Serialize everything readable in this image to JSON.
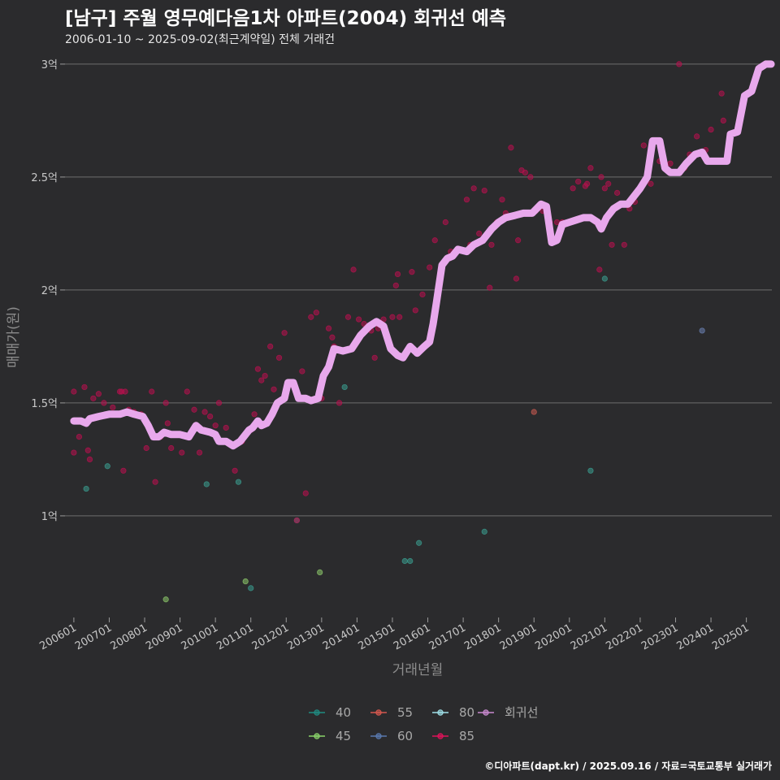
{
  "colors": {
    "background": "#2b2b2d",
    "grid": "#6e6e6e",
    "trend": "#e8a8ec"
  },
  "chart_data": {
    "type": "scatter",
    "title": "[남구] 주월 영무예다음1차 아파트(2004) 회귀선 예측",
    "subtitle": "2006-01-10 ~ 2025-09-02(최근계약일) 전체 거래건",
    "xlabel": "거래년월",
    "ylabel": "매매가(원)",
    "caption": "©디아파트(dapt.kr) / 2025.09.16 / 자료=국토교통부 실거래가",
    "grid": "horizontal",
    "legend_position": "bottom",
    "x_range": [
      "2005-10",
      "2025-12"
    ],
    "ylim": [
      0.55,
      3.05
    ],
    "y_unit": "억",
    "y_ticks": [
      {
        "value": 1.0,
        "label": "1억"
      },
      {
        "value": 1.5,
        "label": "1.5억"
      },
      {
        "value": 2.0,
        "label": "2억"
      },
      {
        "value": 2.5,
        "label": "2.5억"
      },
      {
        "value": 3.0,
        "label": "3억"
      }
    ],
    "x_ticks": [
      {
        "value": 2006.0,
        "label": "200601"
      },
      {
        "value": 2007.0,
        "label": "200701"
      },
      {
        "value": 2008.0,
        "label": "200801"
      },
      {
        "value": 2009.0,
        "label": "200901"
      },
      {
        "value": 2010.0,
        "label": "201001"
      },
      {
        "value": 2011.0,
        "label": "201101"
      },
      {
        "value": 2012.0,
        "label": "201201"
      },
      {
        "value": 2013.0,
        "label": "201301"
      },
      {
        "value": 2014.0,
        "label": "201401"
      },
      {
        "value": 2015.0,
        "label": "201501"
      },
      {
        "value": 2016.0,
        "label": "201601"
      },
      {
        "value": 2017.0,
        "label": "201701"
      },
      {
        "value": 2018.0,
        "label": "201801"
      },
      {
        "value": 2019.0,
        "label": "201901"
      },
      {
        "value": 2020.0,
        "label": "202001"
      },
      {
        "value": 2021.0,
        "label": "202101"
      },
      {
        "value": 2022.0,
        "label": "202201"
      },
      {
        "value": 2023.0,
        "label": "202301"
      },
      {
        "value": 2024.0,
        "label": "202401"
      },
      {
        "value": 2025.0,
        "label": "202501"
      }
    ],
    "legend": [
      {
        "name": "40",
        "color": "#1f8c82",
        "kind": "point"
      },
      {
        "name": "45",
        "color": "#8ad46a",
        "kind": "point"
      },
      {
        "name": "55",
        "color": "#d6584e",
        "kind": "point"
      },
      {
        "name": "60",
        "color": "#5a7ab0",
        "kind": "point"
      },
      {
        "name": "80",
        "color": "#9fe0e8",
        "kind": "point"
      },
      {
        "name": "85",
        "color": "#e0125a",
        "kind": "point"
      },
      {
        "name": "회귀선",
        "color": "#c98ad0",
        "kind": "line"
      }
    ],
    "series": [
      {
        "name": "40",
        "color": "#3a9c8e",
        "points": [
          [
            2006.35,
            1.12
          ],
          [
            2006.95,
            1.22
          ],
          [
            2009.75,
            1.14
          ],
          [
            2010.65,
            1.15
          ],
          [
            2012.3,
            0.98
          ],
          [
            2013.65,
            1.57
          ],
          [
            2015.35,
            0.8
          ],
          [
            2015.5,
            0.8
          ],
          [
            2015.75,
            0.88
          ],
          [
            2017.6,
            0.93
          ],
          [
            2020.6,
            1.2
          ],
          [
            2021.0,
            2.05
          ],
          [
            2011.0,
            0.68
          ]
        ]
      },
      {
        "name": "45",
        "color": "#8cc86a",
        "points": [
          [
            2008.6,
            0.63
          ],
          [
            2010.85,
            0.71
          ],
          [
            2012.95,
            0.75
          ]
        ]
      },
      {
        "name": "55",
        "color": "#c85a50",
        "points": [
          [
            2019.0,
            1.46
          ]
        ]
      },
      {
        "name": "60",
        "color": "#6a80b0",
        "points": [
          [
            2023.75,
            1.82
          ]
        ]
      },
      {
        "name": "85",
        "color": "#b8104e",
        "points": [
          [
            2006.0,
            1.55
          ],
          [
            2006.0,
            1.28
          ],
          [
            2006.15,
            1.35
          ],
          [
            2006.3,
            1.57
          ],
          [
            2006.4,
            1.29
          ],
          [
            2006.45,
            1.25
          ],
          [
            2006.55,
            1.52
          ],
          [
            2006.7,
            1.54
          ],
          [
            2006.85,
            1.5
          ],
          [
            2007.1,
            1.48
          ],
          [
            2007.3,
            1.55
          ],
          [
            2007.35,
            1.55
          ],
          [
            2007.4,
            1.2
          ],
          [
            2007.45,
            1.55
          ],
          [
            2007.55,
            1.47
          ],
          [
            2007.7,
            1.46
          ],
          [
            2007.9,
            1.45
          ],
          [
            2008.05,
            1.3
          ],
          [
            2008.2,
            1.55
          ],
          [
            2008.3,
            1.15
          ],
          [
            2008.45,
            1.35
          ],
          [
            2008.6,
            1.5
          ],
          [
            2008.65,
            1.41
          ],
          [
            2008.75,
            1.3
          ],
          [
            2009.05,
            1.28
          ],
          [
            2009.2,
            1.55
          ],
          [
            2009.4,
            1.47
          ],
          [
            2009.55,
            1.28
          ],
          [
            2009.7,
            1.46
          ],
          [
            2009.85,
            1.44
          ],
          [
            2010.0,
            1.4
          ],
          [
            2010.1,
            1.5
          ],
          [
            2010.3,
            1.39
          ],
          [
            2010.55,
            1.2
          ],
          [
            2010.75,
            1.33
          ],
          [
            2011.0,
            1.38
          ],
          [
            2011.1,
            1.45
          ],
          [
            2011.2,
            1.65
          ],
          [
            2011.3,
            1.6
          ],
          [
            2011.4,
            1.62
          ],
          [
            2011.55,
            1.75
          ],
          [
            2011.65,
            1.56
          ],
          [
            2011.8,
            1.7
          ],
          [
            2011.95,
            1.81
          ],
          [
            2012.15,
            1.58
          ],
          [
            2012.3,
            0.98
          ],
          [
            2012.45,
            1.64
          ],
          [
            2012.55,
            1.1
          ],
          [
            2012.7,
            1.88
          ],
          [
            2012.85,
            1.9
          ],
          [
            2013.0,
            1.52
          ],
          [
            2013.2,
            1.83
          ],
          [
            2013.3,
            1.79
          ],
          [
            2013.35,
            1.75
          ],
          [
            2013.5,
            1.5
          ],
          [
            2013.6,
            1.73
          ],
          [
            2013.75,
            1.88
          ],
          [
            2013.9,
            2.09
          ],
          [
            2014.05,
            1.87
          ],
          [
            2014.2,
            1.85
          ],
          [
            2014.4,
            1.82
          ],
          [
            2014.5,
            1.7
          ],
          [
            2014.6,
            1.83
          ],
          [
            2014.75,
            1.87
          ],
          [
            2015.0,
            1.88
          ],
          [
            2015.1,
            2.02
          ],
          [
            2015.15,
            2.07
          ],
          [
            2015.2,
            1.88
          ],
          [
            2015.65,
            1.91
          ],
          [
            2015.85,
            1.98
          ],
          [
            2016.05,
            2.1
          ],
          [
            2016.2,
            2.22
          ],
          [
            2016.5,
            2.3
          ],
          [
            2016.65,
            2.17
          ],
          [
            2016.9,
            2.18
          ],
          [
            2017.1,
            2.4
          ],
          [
            2017.2,
            2.2
          ],
          [
            2017.3,
            2.45
          ],
          [
            2017.45,
            2.25
          ],
          [
            2017.6,
            2.44
          ],
          [
            2017.8,
            2.2
          ],
          [
            2017.95,
            2.3
          ],
          [
            2018.1,
            2.4
          ],
          [
            2018.2,
            2.34
          ],
          [
            2018.35,
            2.63
          ],
          [
            2018.55,
            2.22
          ],
          [
            2018.65,
            2.53
          ],
          [
            2018.75,
            2.52
          ],
          [
            2018.9,
            2.5
          ],
          [
            2019.05,
            2.35
          ],
          [
            2019.25,
            2.35
          ],
          [
            2019.45,
            2.3
          ],
          [
            2019.65,
            2.3
          ],
          [
            2019.8,
            2.3
          ],
          [
            2020.1,
            2.45
          ],
          [
            2020.25,
            2.48
          ],
          [
            2020.45,
            2.46
          ],
          [
            2020.5,
            2.47
          ],
          [
            2020.6,
            2.54
          ],
          [
            2020.75,
            2.3
          ],
          [
            2020.9,
            2.5
          ],
          [
            2021.0,
            2.45
          ],
          [
            2021.1,
            2.47
          ],
          [
            2021.2,
            2.2
          ],
          [
            2021.35,
            2.43
          ],
          [
            2021.55,
            2.2
          ],
          [
            2021.7,
            2.36
          ],
          [
            2021.85,
            2.39
          ],
          [
            2022.1,
            2.64
          ],
          [
            2022.3,
            2.47
          ],
          [
            2022.55,
            2.57
          ],
          [
            2022.7,
            2.55
          ],
          [
            2022.85,
            2.56
          ],
          [
            2023.1,
            3.0
          ],
          [
            2023.25,
            2.54
          ],
          [
            2023.4,
            2.6
          ],
          [
            2023.6,
            2.68
          ],
          [
            2023.85,
            2.62
          ],
          [
            2024.0,
            2.71
          ],
          [
            2024.3,
            2.87
          ],
          [
            2024.35,
            2.75
          ],
          [
            2020.85,
            2.09
          ],
          [
            2018.5,
            2.05
          ],
          [
            2015.55,
            2.08
          ],
          [
            2017.75,
            2.01
          ]
        ]
      }
    ],
    "trend": {
      "name": "회귀선",
      "points": [
        [
          2006.0,
          1.42
        ],
        [
          2006.2,
          1.42
        ],
        [
          2006.35,
          1.41
        ],
        [
          2006.45,
          1.43
        ],
        [
          2006.7,
          1.44
        ],
        [
          2007.0,
          1.45
        ],
        [
          2007.3,
          1.45
        ],
        [
          2007.5,
          1.46
        ],
        [
          2007.7,
          1.45
        ],
        [
          2007.95,
          1.44
        ],
        [
          2008.1,
          1.4
        ],
        [
          2008.25,
          1.35
        ],
        [
          2008.4,
          1.35
        ],
        [
          2008.55,
          1.37
        ],
        [
          2008.75,
          1.36
        ],
        [
          2009.0,
          1.36
        ],
        [
          2009.25,
          1.35
        ],
        [
          2009.45,
          1.4
        ],
        [
          2009.6,
          1.38
        ],
        [
          2009.85,
          1.37
        ],
        [
          2010.0,
          1.36
        ],
        [
          2010.1,
          1.33
        ],
        [
          2010.3,
          1.33
        ],
        [
          2010.5,
          1.31
        ],
        [
          2010.7,
          1.33
        ],
        [
          2010.95,
          1.38
        ],
        [
          2011.05,
          1.39
        ],
        [
          2011.2,
          1.42
        ],
        [
          2011.3,
          1.4
        ],
        [
          2011.45,
          1.41
        ],
        [
          2011.6,
          1.45
        ],
        [
          2011.75,
          1.5
        ],
        [
          2011.95,
          1.52
        ],
        [
          2012.05,
          1.59
        ],
        [
          2012.2,
          1.59
        ],
        [
          2012.35,
          1.52
        ],
        [
          2012.55,
          1.52
        ],
        [
          2012.7,
          1.51
        ],
        [
          2012.9,
          1.52
        ],
        [
          2013.05,
          1.62
        ],
        [
          2013.2,
          1.66
        ],
        [
          2013.35,
          1.74
        ],
        [
          2013.6,
          1.73
        ],
        [
          2013.85,
          1.74
        ],
        [
          2014.1,
          1.8
        ],
        [
          2014.35,
          1.84
        ],
        [
          2014.55,
          1.86
        ],
        [
          2014.75,
          1.84
        ],
        [
          2014.95,
          1.74
        ],
        [
          2015.15,
          1.71
        ],
        [
          2015.3,
          1.7
        ],
        [
          2015.5,
          1.75
        ],
        [
          2015.7,
          1.72
        ],
        [
          2015.9,
          1.75
        ],
        [
          2016.05,
          1.77
        ],
        [
          2016.15,
          1.85
        ],
        [
          2016.25,
          1.95
        ],
        [
          2016.4,
          2.11
        ],
        [
          2016.55,
          2.14
        ],
        [
          2016.7,
          2.15
        ],
        [
          2016.85,
          2.18
        ],
        [
          2017.1,
          2.17
        ],
        [
          2017.3,
          2.2
        ],
        [
          2017.55,
          2.22
        ],
        [
          2017.8,
          2.27
        ],
        [
          2018.0,
          2.3
        ],
        [
          2018.2,
          2.32
        ],
        [
          2018.45,
          2.33
        ],
        [
          2018.7,
          2.34
        ],
        [
          2018.95,
          2.34
        ],
        [
          2019.2,
          2.38
        ],
        [
          2019.35,
          2.37
        ],
        [
          2019.5,
          2.21
        ],
        [
          2019.65,
          2.22
        ],
        [
          2019.8,
          2.29
        ],
        [
          2020.0,
          2.3
        ],
        [
          2020.2,
          2.31
        ],
        [
          2020.4,
          2.32
        ],
        [
          2020.6,
          2.32
        ],
        [
          2020.8,
          2.3
        ],
        [
          2020.9,
          2.27
        ],
        [
          2021.05,
          2.32
        ],
        [
          2021.25,
          2.36
        ],
        [
          2021.45,
          2.38
        ],
        [
          2021.65,
          2.38
        ],
        [
          2021.85,
          2.42
        ],
        [
          2022.0,
          2.45
        ],
        [
          2022.2,
          2.5
        ],
        [
          2022.35,
          2.66
        ],
        [
          2022.55,
          2.66
        ],
        [
          2022.7,
          2.54
        ],
        [
          2022.85,
          2.52
        ],
        [
          2023.1,
          2.52
        ],
        [
          2023.3,
          2.56
        ],
        [
          2023.55,
          2.6
        ],
        [
          2023.75,
          2.61
        ],
        [
          2023.9,
          2.57
        ],
        [
          2024.1,
          2.57
        ],
        [
          2024.3,
          2.57
        ],
        [
          2024.45,
          2.57
        ],
        [
          2024.55,
          2.69
        ],
        [
          2024.75,
          2.7
        ],
        [
          2024.95,
          2.86
        ],
        [
          2025.15,
          2.88
        ],
        [
          2025.35,
          2.98
        ],
        [
          2025.55,
          3.0
        ],
        [
          2025.7,
          3.0
        ]
      ]
    }
  }
}
